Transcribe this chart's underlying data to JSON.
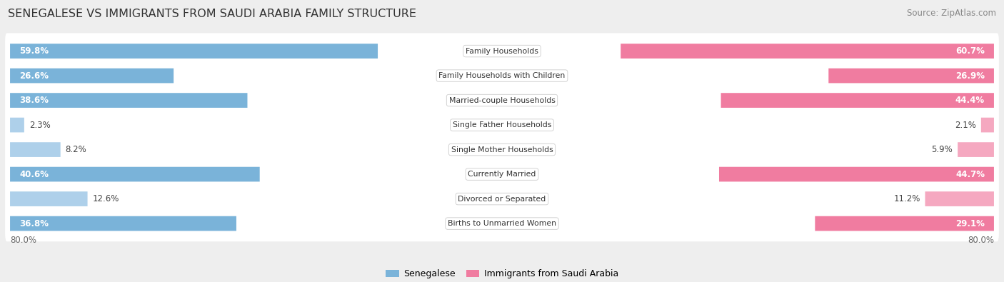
{
  "title": "SENEGALESE VS IMMIGRANTS FROM SAUDI ARABIA FAMILY STRUCTURE",
  "source": "Source: ZipAtlas.com",
  "categories": [
    "Family Households",
    "Family Households with Children",
    "Married-couple Households",
    "Single Father Households",
    "Single Mother Households",
    "Currently Married",
    "Divorced or Separated",
    "Births to Unmarried Women"
  ],
  "senegalese": [
    59.8,
    26.6,
    38.6,
    2.3,
    8.2,
    40.6,
    12.6,
    36.8
  ],
  "saudi": [
    60.7,
    26.9,
    44.4,
    2.1,
    5.9,
    44.7,
    11.2,
    29.1
  ],
  "x_max": 80.0,
  "color_senegalese": "#7ab3d9",
  "color_saudi": "#f07ca0",
  "color_senegalese_light": "#aed0ea",
  "color_saudi_light": "#f5a8c0",
  "bg_color": "#eeeeee",
  "bar_bg_color": "#ffffff",
  "legend_senegalese": "Senegalese",
  "legend_saudi": "Immigrants from Saudi Arabia",
  "axis_label": "80.0%",
  "title_fontsize": 11.5,
  "source_fontsize": 8.5,
  "bar_label_fontsize": 8.5,
  "cat_label_fontsize": 7.8,
  "legend_fontsize": 9.0
}
